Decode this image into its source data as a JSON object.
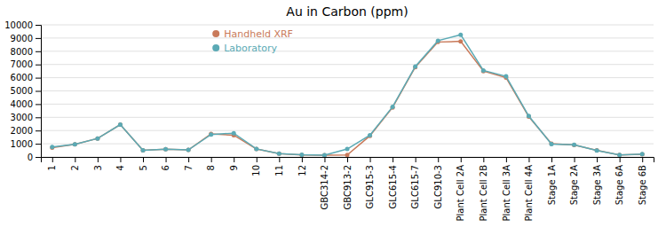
{
  "chart_data": {
    "type": "line",
    "title": "Au in Carbon (ppm)",
    "categories": [
      "1",
      "2",
      "3",
      "4",
      "5",
      "6",
      "7",
      "8",
      "9",
      "10",
      "11",
      "12",
      "GBC314-2",
      "GBC913-2",
      "GLC915-3",
      "GLC615-4",
      "GLC615-7",
      "GLC910-3",
      "Plant Cell 2A",
      "Plant Cell 2B",
      "Plant Cell 3A",
      "Plant Cell 4A",
      "Stage 1A",
      "Stage 2A",
      "Stage 3A",
      "Stage 6A",
      "Stage 6B"
    ],
    "series": [
      {
        "name": "Handheld XRF",
        "color": "#C97A5A",
        "values": [
          700,
          950,
          1400,
          2450,
          500,
          580,
          530,
          1750,
          1650,
          600,
          250,
          150,
          130,
          150,
          1600,
          3750,
          6800,
          8700,
          8750,
          6500,
          6000,
          3050,
          1000,
          900,
          500,
          150,
          200
        ]
      },
      {
        "name": "Laboratory",
        "color": "#5BAAB5",
        "values": [
          750,
          950,
          1400,
          2450,
          500,
          580,
          530,
          1700,
          1800,
          610,
          250,
          160,
          130,
          600,
          1650,
          3800,
          6850,
          8800,
          9250,
          6550,
          6100,
          3100,
          980,
          920,
          490,
          150,
          210
        ]
      }
    ],
    "marker": "circle",
    "ylim": [
      0,
      10000
    ],
    "yticks": [
      0,
      1000,
      2000,
      3000,
      4000,
      5000,
      6000,
      7000,
      8000,
      9000,
      10000
    ],
    "grid": true,
    "legend": "upper left"
  }
}
